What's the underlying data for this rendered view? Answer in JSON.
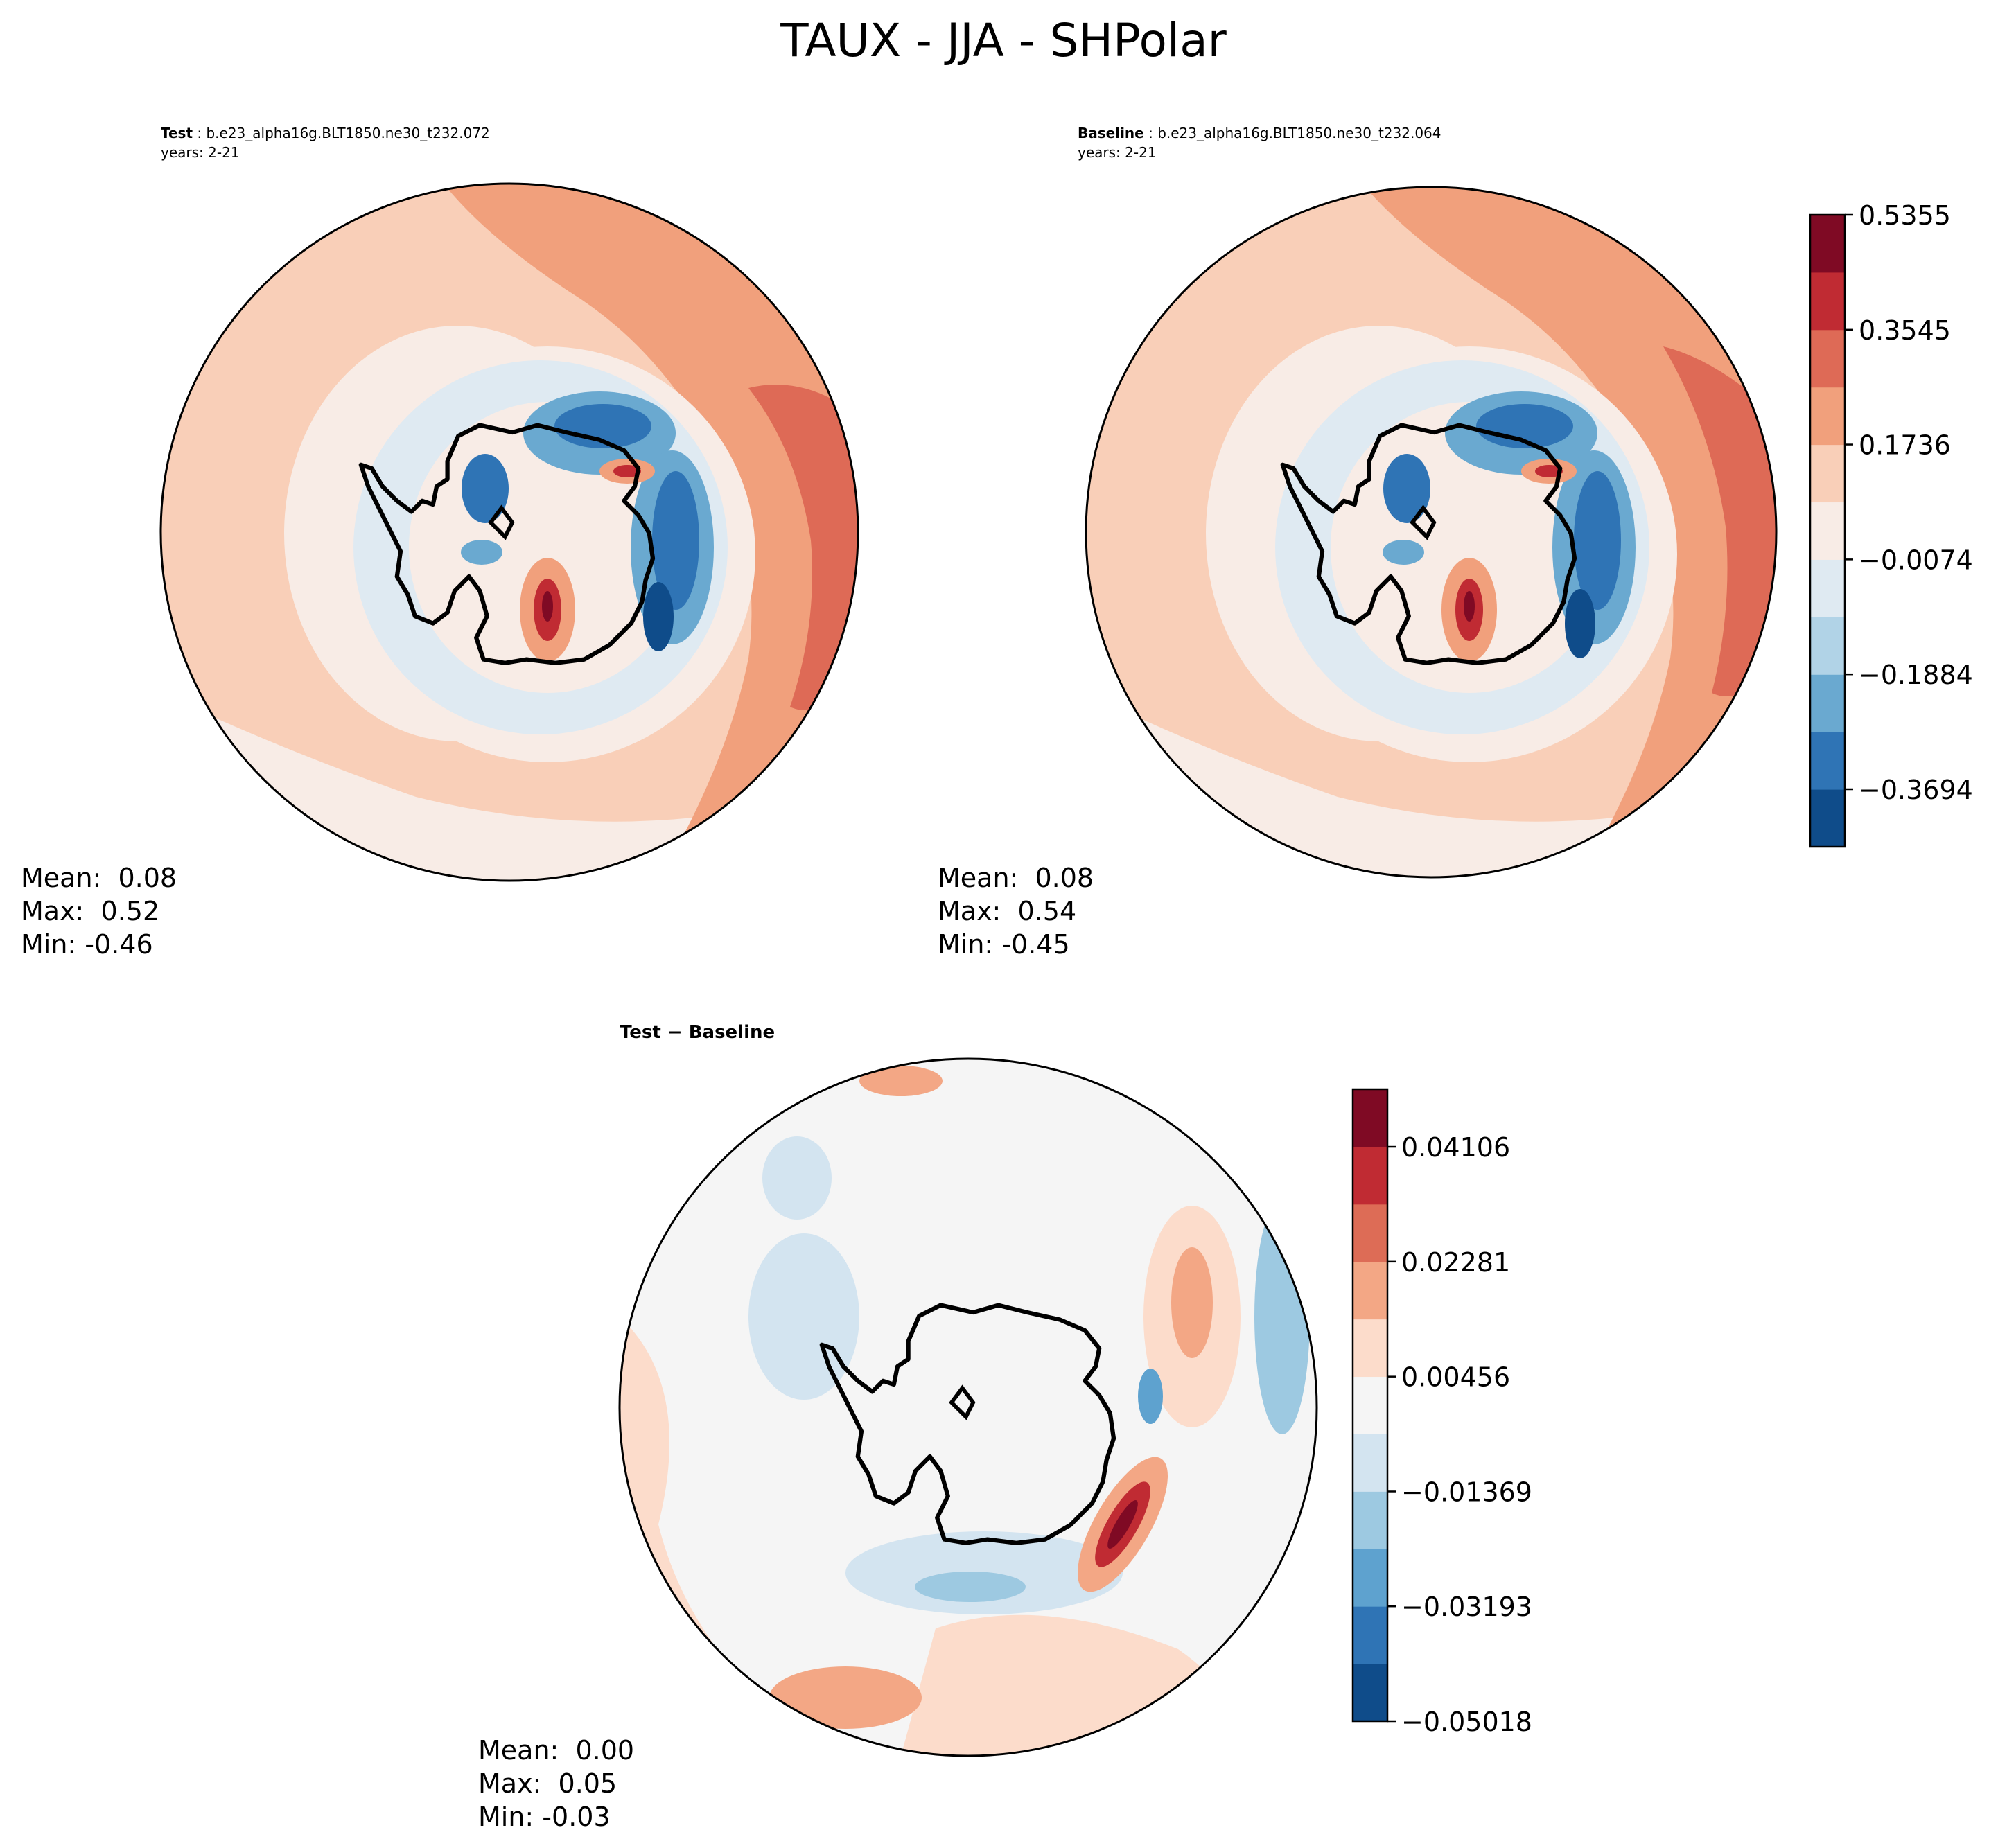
{
  "figure": {
    "title": "TAUX - JJA - SHPolar"
  },
  "panels": {
    "test": {
      "label": "Test",
      "case": "b.e23_alpha16g.BLT1850.ne30_t232.072",
      "years": "years: 2-21",
      "mean": "Mean:  0.08",
      "max": "Max:  0.52",
      "min": "Min: -0.46"
    },
    "baseline": {
      "label": "Baseline",
      "case": "b.e23_alpha16g.BLT1850.ne30_t232.064",
      "years": "years: 2-21",
      "mean": "Mean:  0.08",
      "max": "Max:  0.54",
      "min": "Min: -0.45"
    },
    "diff": {
      "label": "Test − Baseline",
      "mean": "Mean:  0.00",
      "max": "Max:  0.05",
      "min": "Min: -0.03"
    }
  },
  "chart_data": [
    {
      "type": "heatmap",
      "panel": "test",
      "colorbar": {
        "ticks": [
          "0.5355",
          "0.3545",
          "0.1736",
          "−0.0074",
          "−0.1884",
          "−0.3694"
        ],
        "tick_values": [
          0.5355,
          0.3545,
          0.1736,
          -0.0074,
          -0.1884,
          -0.3694
        ],
        "range": [
          -0.46,
          0.5355
        ],
        "levels": 11,
        "colors": [
          "#0f4c8a",
          "#2f74b5",
          "#6aa9d0",
          "#b1d3e7",
          "#dfeaf2",
          "#f8ece6",
          "#f9cfb8",
          "#f1a07c",
          "#de6a56",
          "#c02b33",
          "#7f0a24"
        ]
      }
    },
    {
      "type": "heatmap",
      "panel": "baseline",
      "colorbar": "shared with test"
    },
    {
      "type": "heatmap",
      "panel": "diff",
      "colorbar": {
        "ticks": [
          "0.04106",
          "0.02281",
          "0.00456",
          "−0.01369",
          "−0.03193",
          "−0.05018"
        ],
        "tick_values": [
          0.04106,
          0.02281,
          0.00456,
          -0.01369,
          -0.03193,
          -0.05018
        ],
        "range": [
          -0.05018,
          0.0502
        ],
        "levels": 11,
        "colors": [
          "#0f4c8a",
          "#2f74b5",
          "#5ea2cf",
          "#9dc9e1",
          "#d3e4f0",
          "#f5f5f5",
          "#fcdccb",
          "#f3a785",
          "#dd6c56",
          "#c02b33",
          "#7f0a24"
        ]
      }
    }
  ]
}
